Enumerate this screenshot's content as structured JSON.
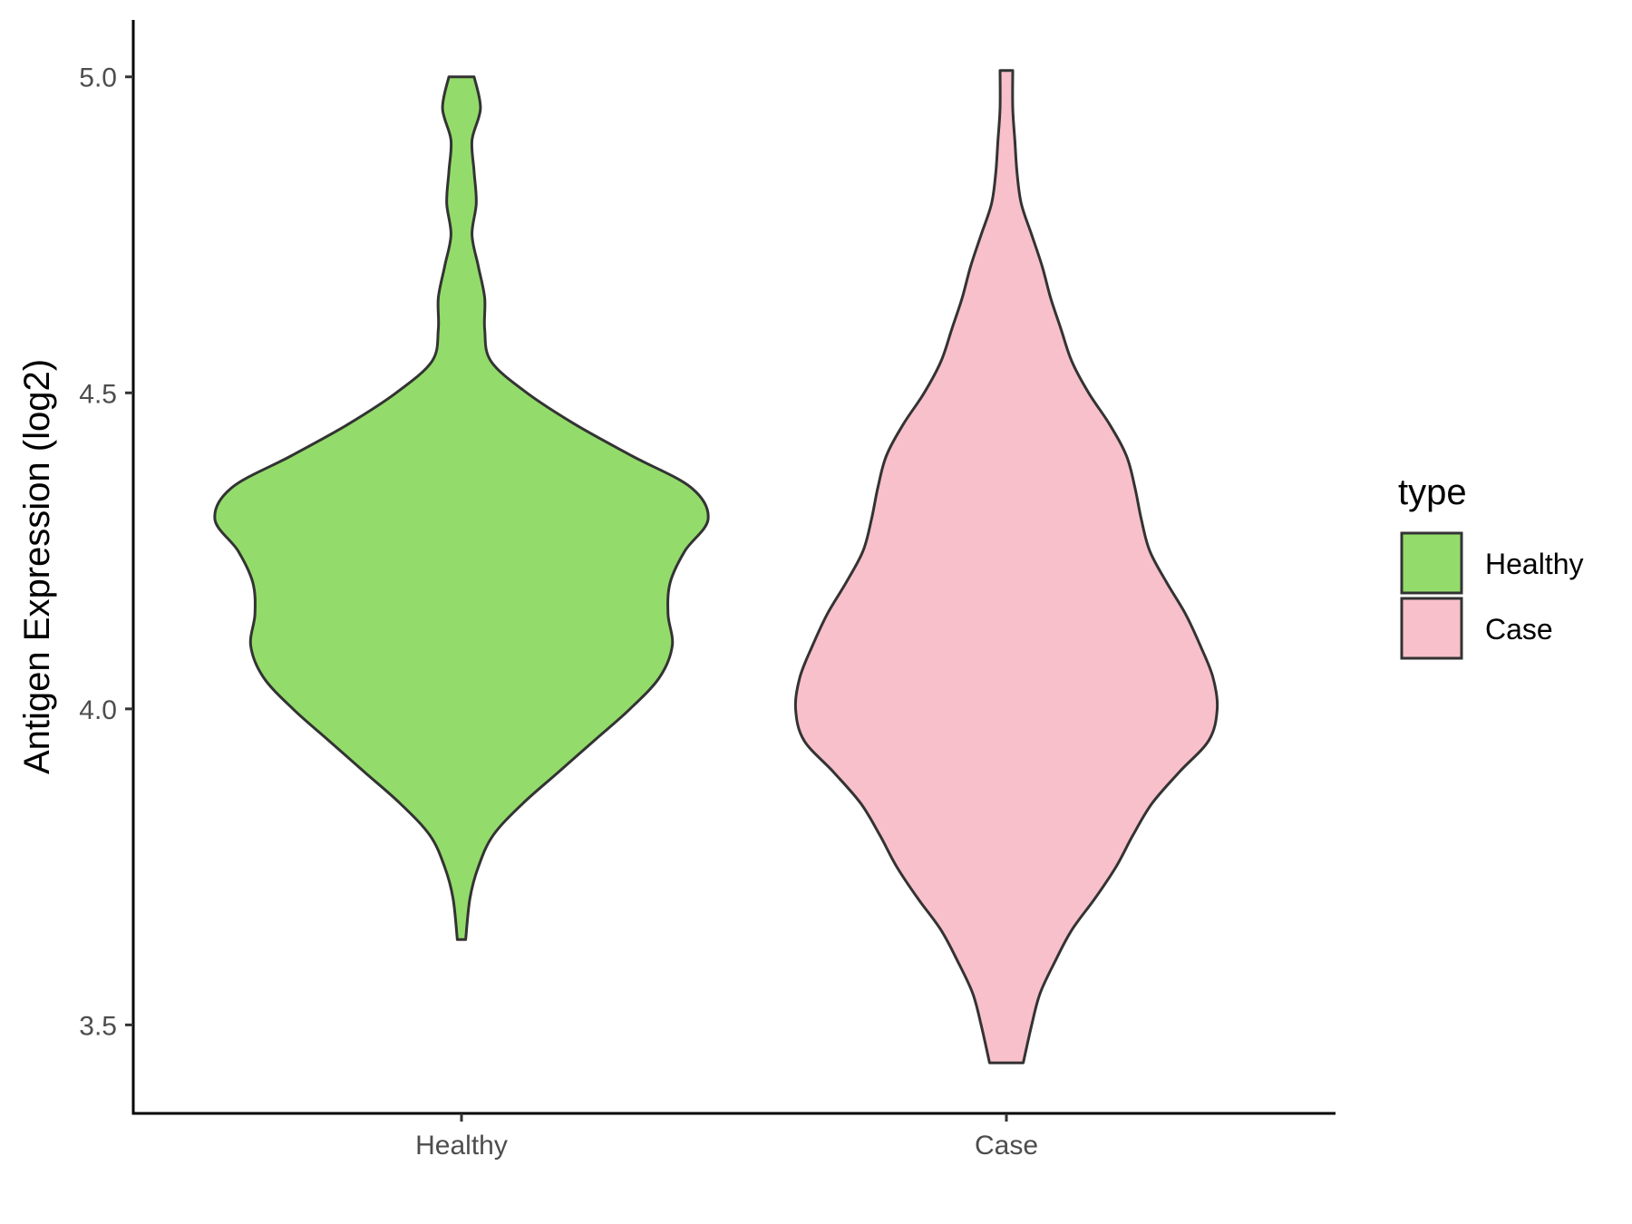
{
  "chart_data": {
    "type": "violin",
    "title": "",
    "xlabel": "",
    "ylabel": "Antigen Expression (log2)",
    "ylim": [
      3.36,
      5.09
    ],
    "yticks": [
      3.5,
      4.0,
      4.5,
      5.0
    ],
    "ytick_labels": [
      "3.5",
      "4.0",
      "4.5",
      "5.0"
    ],
    "categories": [
      "Healthy",
      "Case"
    ],
    "grid": false,
    "legend": {
      "title": "type",
      "position": "right",
      "entries": [
        {
          "label": "Healthy",
          "color": "#93dc6b"
        },
        {
          "label": "Case",
          "color": "#f8c0cb"
        }
      ]
    },
    "series": [
      {
        "name": "Healthy",
        "color": "#93dc6b",
        "min": 3.635,
        "max": 5.0,
        "density_profile": [
          [
            3.635,
            0.02
          ],
          [
            3.7,
            0.04
          ],
          [
            3.75,
            0.08
          ],
          [
            3.8,
            0.15
          ],
          [
            3.85,
            0.29
          ],
          [
            3.9,
            0.46
          ],
          [
            3.95,
            0.63
          ],
          [
            4.0,
            0.8
          ],
          [
            4.05,
            0.94
          ],
          [
            4.1,
            1.0
          ],
          [
            4.15,
            0.98
          ],
          [
            4.2,
            0.99
          ],
          [
            4.25,
            1.06
          ],
          [
            4.3,
            1.17
          ],
          [
            4.35,
            1.09
          ],
          [
            4.4,
            0.81
          ],
          [
            4.45,
            0.54
          ],
          [
            4.5,
            0.31
          ],
          [
            4.55,
            0.14
          ],
          [
            4.6,
            0.11
          ],
          [
            4.65,
            0.11
          ],
          [
            4.7,
            0.08
          ],
          [
            4.75,
            0.05
          ],
          [
            4.8,
            0.07
          ],
          [
            4.85,
            0.06
          ],
          [
            4.9,
            0.05
          ],
          [
            4.95,
            0.09
          ],
          [
            5.0,
            0.06
          ]
        ]
      },
      {
        "name": "Case",
        "color": "#f8c0cb",
        "min": 3.44,
        "max": 5.01,
        "density_profile": [
          [
            3.44,
            0.08
          ],
          [
            3.5,
            0.12
          ],
          [
            3.55,
            0.16
          ],
          [
            3.6,
            0.23
          ],
          [
            3.65,
            0.31
          ],
          [
            3.7,
            0.42
          ],
          [
            3.75,
            0.52
          ],
          [
            3.8,
            0.6
          ],
          [
            3.85,
            0.69
          ],
          [
            3.9,
            0.82
          ],
          [
            3.95,
            0.96
          ],
          [
            4.0,
            1.0
          ],
          [
            4.05,
            0.98
          ],
          [
            4.1,
            0.92
          ],
          [
            4.15,
            0.85
          ],
          [
            4.2,
            0.76
          ],
          [
            4.25,
            0.68
          ],
          [
            4.3,
            0.64
          ],
          [
            4.35,
            0.61
          ],
          [
            4.4,
            0.57
          ],
          [
            4.45,
            0.49
          ],
          [
            4.5,
            0.39
          ],
          [
            4.55,
            0.31
          ],
          [
            4.6,
            0.26
          ],
          [
            4.65,
            0.21
          ],
          [
            4.7,
            0.17
          ],
          [
            4.75,
            0.12
          ],
          [
            4.8,
            0.07
          ],
          [
            4.85,
            0.05
          ],
          [
            4.9,
            0.04
          ],
          [
            4.95,
            0.03
          ],
          [
            5.01,
            0.03
          ]
        ]
      }
    ]
  }
}
